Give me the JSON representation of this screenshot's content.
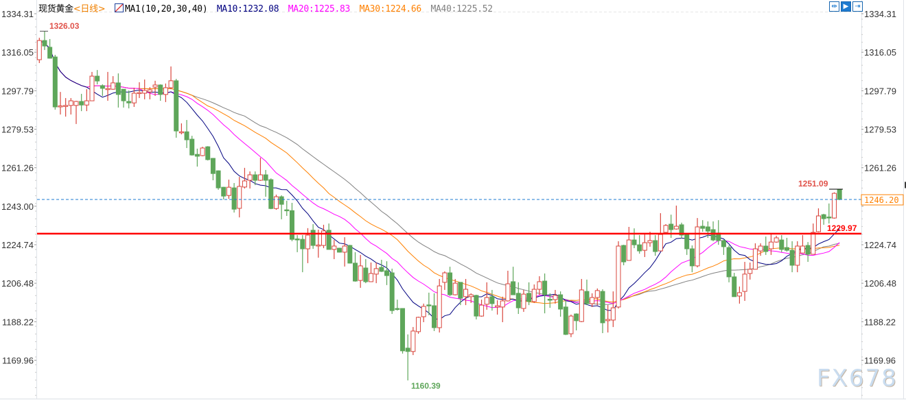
{
  "header": {
    "symbol": "现货黄金",
    "period": "<日线>",
    "indicator_icon": "chart-indicator-icon",
    "indicator": "MA1(10,20,30,40)",
    "ma10": "MA10:1232.08",
    "ma20": "MA20:1225.83",
    "ma30": "MA30:1224.66",
    "ma40": "MA40:1225.52"
  },
  "toolbar": {
    "icons": [
      "fit-range-icon",
      "cursor-mode-icon",
      "scroll-right-icon"
    ]
  },
  "colors": {
    "up": "#d9453c",
    "down": "#5ea65a",
    "ma10": "#000080",
    "ma20": "#ff00ff",
    "ma30": "#ff8000",
    "ma40": "#808080",
    "support_line": "#ff0000",
    "price_line": "#1e7bd0"
  },
  "watermark": "FX678",
  "chart_data": {
    "type": "candlestick",
    "title": "现货黄金",
    "period": "日线",
    "ylim": [
      1160.0,
      1336.0
    ],
    "y_ticks": [
      "1334.31",
      "1316.05",
      "1297.79",
      "1279.53",
      "1261.26",
      "1243.00",
      "1224.74",
      "1206.48",
      "1188.22",
      "1169.96"
    ],
    "ma_periods": [
      10,
      20,
      30,
      40
    ],
    "annotations": {
      "high": "1326.03",
      "low": "1160.39",
      "recent_high": "1251.09",
      "support": "1229.97",
      "last_price": "1246.20"
    },
    "support_level": 1229.97,
    "last_price": 1246.2,
    "candles_ohlc": [
      [
        1312.5,
        1322.9,
        1310.9,
        1321.6
      ],
      [
        1321.6,
        1326.03,
        1317.1,
        1319.0
      ],
      [
        1318.4,
        1322.3,
        1313.0,
        1313.2
      ],
      [
        1313.8,
        1314.8,
        1288.8,
        1290.1
      ],
      [
        1290.1,
        1297.2,
        1286.5,
        1290.6
      ],
      [
        1290.4,
        1294.3,
        1285.5,
        1290.8
      ],
      [
        1290.8,
        1294.3,
        1286.5,
        1293.0
      ],
      [
        1290.8,
        1293.0,
        1282.0,
        1292.7
      ],
      [
        1292.7,
        1296.3,
        1288.1,
        1291.0
      ],
      [
        1291.0,
        1298.5,
        1288.1,
        1293.0
      ],
      [
        1293.0,
        1306.7,
        1293.0,
        1304.7
      ],
      [
        1304.7,
        1307.6,
        1300.8,
        1302.4
      ],
      [
        1300.2,
        1300.8,
        1295.3,
        1298.9
      ],
      [
        1298.5,
        1306.7,
        1293.0,
        1298.8
      ],
      [
        1298.5,
        1304.7,
        1298.2,
        1301.5
      ],
      [
        1301.5,
        1306.0,
        1289.8,
        1296.0
      ],
      [
        1298.5,
        1298.5,
        1289.8,
        1293.0
      ],
      [
        1292.7,
        1297.9,
        1289.4,
        1292.0
      ],
      [
        1292.0,
        1299.2,
        1290.1,
        1296.6
      ],
      [
        1296.6,
        1301.8,
        1294.3,
        1296.9
      ],
      [
        1296.6,
        1303.1,
        1293.7,
        1297.9
      ],
      [
        1297.2,
        1299.5,
        1293.7,
        1298.2
      ],
      [
        1299.5,
        1302.5,
        1295.3,
        1300.5
      ],
      [
        1300.5,
        1300.8,
        1293.0,
        1296.0
      ],
      [
        1296.0,
        1301.2,
        1292.4,
        1299.2
      ],
      [
        1299.2,
        1309.3,
        1298.5,
        1302.5
      ],
      [
        1302.5,
        1303.4,
        1275.5,
        1278.7
      ],
      [
        1278.0,
        1282.3,
        1277.1,
        1278.3
      ],
      [
        1278.3,
        1283.9,
        1270.6,
        1274.5
      ],
      [
        1274.8,
        1276.4,
        1267.0,
        1267.3
      ],
      [
        1267.6,
        1270.3,
        1261.8,
        1266.7
      ],
      [
        1267.0,
        1271.2,
        1266.7,
        1270.6
      ],
      [
        1271.2,
        1271.5,
        1264.7,
        1265.1
      ],
      [
        1265.7,
        1265.9,
        1255.3,
        1258.5
      ],
      [
        1259.8,
        1260.0,
        1250.8,
        1251.7
      ],
      [
        1252.0,
        1252.2,
        1246.2,
        1247.8
      ],
      [
        1248.1,
        1255.6,
        1246.5,
        1252.0
      ],
      [
        1251.7,
        1254.0,
        1240.0,
        1241.6
      ],
      [
        1242.0,
        1256.9,
        1237.7,
        1252.4
      ],
      [
        1252.1,
        1261.2,
        1251.4,
        1255.0
      ],
      [
        1255.3,
        1259.5,
        1251.4,
        1257.9
      ],
      [
        1257.9,
        1259.5,
        1253.0,
        1255.3
      ],
      [
        1255.3,
        1266.0,
        1255.0,
        1257.9
      ],
      [
        1257.9,
        1260.2,
        1247.5,
        1255.3
      ],
      [
        1255.6,
        1256.2,
        1241.6,
        1241.9
      ],
      [
        1241.9,
        1248.5,
        1241.3,
        1247.5
      ],
      [
        1247.5,
        1248.2,
        1236.8,
        1243.9
      ],
      [
        1241.3,
        1245.6,
        1238.4,
        1241.0
      ],
      [
        1240.9,
        1244.6,
        1226.4,
        1227.3
      ],
      [
        1227.5,
        1229.3,
        1221.2,
        1227.3
      ],
      [
        1227.3,
        1229.3,
        1211.7,
        1222.8
      ],
      [
        1222.8,
        1232.6,
        1216.0,
        1229.3
      ],
      [
        1231.6,
        1234.5,
        1222.8,
        1224.4
      ],
      [
        1224.4,
        1231.9,
        1218.6,
        1224.6
      ],
      [
        1224.4,
        1234.2,
        1223.1,
        1231.3
      ],
      [
        1231.6,
        1234.8,
        1222.5,
        1222.5
      ],
      [
        1222.5,
        1227.0,
        1217.9,
        1224.1
      ],
      [
        1223.1,
        1223.3,
        1221.0,
        1221.2
      ],
      [
        1221.2,
        1228.3,
        1214.4,
        1224.1
      ],
      [
        1224.4,
        1224.7,
        1215.8,
        1216.0
      ],
      [
        1216.0,
        1221.2,
        1207.2,
        1207.5
      ],
      [
        1207.8,
        1219.9,
        1204.3,
        1214.7
      ],
      [
        1213.7,
        1217.9,
        1206.5,
        1207.2
      ],
      [
        1207.2,
        1216.3,
        1207.0,
        1211.1
      ],
      [
        1210.8,
        1216.3,
        1206.5,
        1213.4
      ],
      [
        1214.0,
        1217.6,
        1211.8,
        1212.1
      ],
      [
        1212.4,
        1216.9,
        1205.6,
        1210.1
      ],
      [
        1211.4,
        1213.4,
        1191.9,
        1193.5
      ],
      [
        1194.5,
        1198.7,
        1193.5,
        1194.2
      ],
      [
        1194.5,
        1194.6,
        1173.1,
        1174.4
      ],
      [
        1175.7,
        1182.2,
        1160.39,
        1174.1
      ],
      [
        1174.1,
        1185.7,
        1172.4,
        1183.8
      ],
      [
        1183.5,
        1190.6,
        1182.5,
        1190.3
      ],
      [
        1190.6,
        1196.8,
        1188.0,
        1195.5
      ],
      [
        1196.2,
        1202.0,
        1191.3,
        1196.0
      ],
      [
        1195.8,
        1201.7,
        1183.8,
        1185.4
      ],
      [
        1185.4,
        1208.5,
        1183.1,
        1205.2
      ],
      [
        1206.9,
        1212.1,
        1203.3,
        1211.4
      ],
      [
        1211.4,
        1214.3,
        1200.4,
        1201.0
      ],
      [
        1201.0,
        1208.5,
        1200.7,
        1206.5
      ],
      [
        1206.9,
        1206.9,
        1196.1,
        1199.4
      ],
      [
        1200.1,
        1208.5,
        1196.1,
        1203.6
      ],
      [
        1200.1,
        1201.7,
        1197.1,
        1201.0
      ],
      [
        1200.7,
        1201.0,
        1189.3,
        1190.9
      ],
      [
        1190.9,
        1198.7,
        1190.6,
        1196.1
      ],
      [
        1196.5,
        1206.9,
        1193.9,
        1199.7
      ],
      [
        1200.1,
        1203.3,
        1193.5,
        1196.8
      ],
      [
        1195.2,
        1198.4,
        1191.6,
        1195.8
      ],
      [
        1195.2,
        1200.1,
        1188.0,
        1198.1
      ],
      [
        1198.1,
        1212.4,
        1197.8,
        1206.2
      ],
      [
        1207.2,
        1214.3,
        1201.3,
        1201.0
      ],
      [
        1201.7,
        1206.9,
        1191.9,
        1194.8
      ],
      [
        1194.5,
        1203.3,
        1192.9,
        1201.3
      ],
      [
        1201.7,
        1206.9,
        1196.1,
        1197.8
      ],
      [
        1197.8,
        1205.9,
        1197.1,
        1203.6
      ],
      [
        1203.6,
        1209.8,
        1201.0,
        1207.2
      ],
      [
        1207.5,
        1211.1,
        1192.2,
        1201.0
      ],
      [
        1198.9,
        1201.7,
        1194.8,
        1198.7
      ],
      [
        1198.7,
        1203.3,
        1196.8,
        1200.7
      ],
      [
        1201.0,
        1202.6,
        1190.6,
        1194.2
      ],
      [
        1195.2,
        1198.4,
        1181.9,
        1182.2
      ],
      [
        1182.5,
        1191.6,
        1180.9,
        1190.9
      ],
      [
        1191.9,
        1192.2,
        1184.1,
        1188.7
      ],
      [
        1188.3,
        1208.5,
        1188.0,
        1203.3
      ],
      [
        1202.6,
        1208.2,
        1196.1,
        1196.8
      ],
      [
        1196.8,
        1201.7,
        1195.2,
        1199.7
      ],
      [
        1199.7,
        1204.0,
        1196.1,
        1203.0
      ],
      [
        1202.6,
        1203.6,
        1182.8,
        1187.7
      ],
      [
        1188.7,
        1196.1,
        1183.1,
        1189.3
      ],
      [
        1189.0,
        1202.6,
        1185.7,
        1194.8
      ],
      [
        1195.2,
        1226.4,
        1194.5,
        1224.1
      ],
      [
        1224.4,
        1224.7,
        1215.0,
        1216.6
      ],
      [
        1217.3,
        1233.2,
        1217.2,
        1227.0
      ],
      [
        1227.0,
        1232.5,
        1223.1,
        1224.7
      ],
      [
        1224.7,
        1229.3,
        1220.5,
        1221.8
      ],
      [
        1222.1,
        1229.6,
        1218.9,
        1225.7
      ],
      [
        1225.7,
        1230.9,
        1223.8,
        1226.7
      ],
      [
        1226.7,
        1229.3,
        1219.5,
        1221.5
      ],
      [
        1221.8,
        1239.7,
        1221.8,
        1229.6
      ],
      [
        1230.6,
        1234.5,
        1230.3,
        1233.9
      ],
      [
        1234.5,
        1239.0,
        1228.0,
        1231.9
      ],
      [
        1232.2,
        1243.3,
        1231.9,
        1233.5
      ],
      [
        1234.2,
        1235.2,
        1227.7,
        1229.3
      ],
      [
        1229.6,
        1229.8,
        1219.9,
        1222.8
      ],
      [
        1222.8,
        1224.4,
        1211.7,
        1214.7
      ],
      [
        1214.7,
        1237.4,
        1214.0,
        1233.2
      ],
      [
        1233.5,
        1236.4,
        1230.9,
        1232.5
      ],
      [
        1233.2,
        1235.8,
        1228.0,
        1231.2
      ],
      [
        1231.9,
        1235.8,
        1226.4,
        1227.0
      ],
      [
        1230.3,
        1236.4,
        1224.7,
        1226.7
      ],
      [
        1226.7,
        1227.0,
        1219.9,
        1223.8
      ],
      [
        1223.4,
        1224.4,
        1206.9,
        1209.5
      ],
      [
        1209.5,
        1211.4,
        1200.1,
        1200.1
      ],
      [
        1200.4,
        1204.9,
        1196.8,
        1202.0
      ],
      [
        1202.6,
        1216.6,
        1198.1,
        1210.8
      ],
      [
        1211.1,
        1216.3,
        1208.2,
        1213.1
      ],
      [
        1213.1,
        1225.4,
        1213.0,
        1222.8
      ],
      [
        1221.8,
        1225.4,
        1219.5,
        1224.1
      ],
      [
        1224.1,
        1228.6,
        1219.9,
        1221.5
      ],
      [
        1222.8,
        1229.6,
        1219.9,
        1226.0
      ],
      [
        1226.0,
        1229.0,
        1225.7,
        1228.0
      ],
      [
        1227.0,
        1229.3,
        1221.2,
        1222.5
      ],
      [
        1223.4,
        1228.0,
        1221.5,
        1222.1
      ],
      [
        1222.1,
        1226.4,
        1211.7,
        1215.0
      ],
      [
        1215.0,
        1226.4,
        1211.7,
        1224.1
      ],
      [
        1220.8,
        1229.3,
        1220.8,
        1224.1
      ],
      [
        1224.4,
        1226.0,
        1216.6,
        1220.2
      ],
      [
        1220.2,
        1234.8,
        1220.2,
        1230.6
      ],
      [
        1230.9,
        1242.0,
        1230.6,
        1238.4
      ],
      [
        1239.0,
        1239.4,
        1234.2,
        1237.1
      ],
      [
        1237.9,
        1244.3,
        1234.8,
        1237.7
      ],
      [
        1237.4,
        1249.6,
        1237.1,
        1249.1
      ],
      [
        1250.8,
        1251.09,
        1245.9,
        1246.2
      ]
    ]
  }
}
